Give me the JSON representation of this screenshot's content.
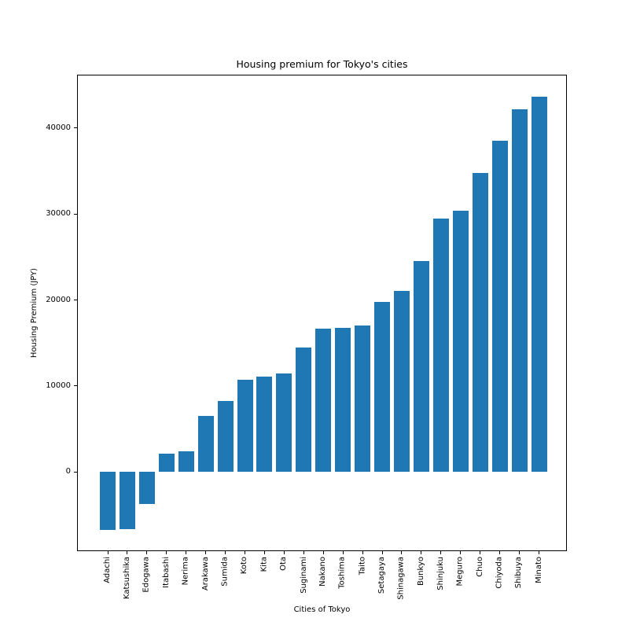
{
  "figure": {
    "background": "#ffffff"
  },
  "chart_data": {
    "type": "bar",
    "title": "Housing premium for Tokyo's cities",
    "xlabel": "Cities of Tokyo",
    "ylabel": "Housing Premium (JPY)",
    "bar_color": "#1f77b4",
    "grid": false,
    "categories": [
      "Adachi",
      "Katsushika",
      "Edogawa",
      "Itabashi",
      "Nerima",
      "Arakawa",
      "Sumida",
      "Koto",
      "Kita",
      "Ota",
      "Suginami",
      "Nakano",
      "Toshima",
      "Taito",
      "Setagaya",
      "Shinagawa",
      "Bunkyo",
      "Shinjuku",
      "Meguro",
      "Chuo",
      "Chiyoda",
      "Shibuya",
      "Minato"
    ],
    "values": [
      -6700,
      -6650,
      -3700,
      2150,
      2400,
      6500,
      8250,
      10700,
      11100,
      11450,
      14450,
      16650,
      16750,
      17000,
      19750,
      21100,
      24500,
      29450,
      30350,
      34750,
      38550,
      42150,
      43600
    ],
    "yticks": [
      0,
      10000,
      20000,
      30000,
      40000
    ],
    "ylim": [
      -9200,
      46200
    ]
  }
}
